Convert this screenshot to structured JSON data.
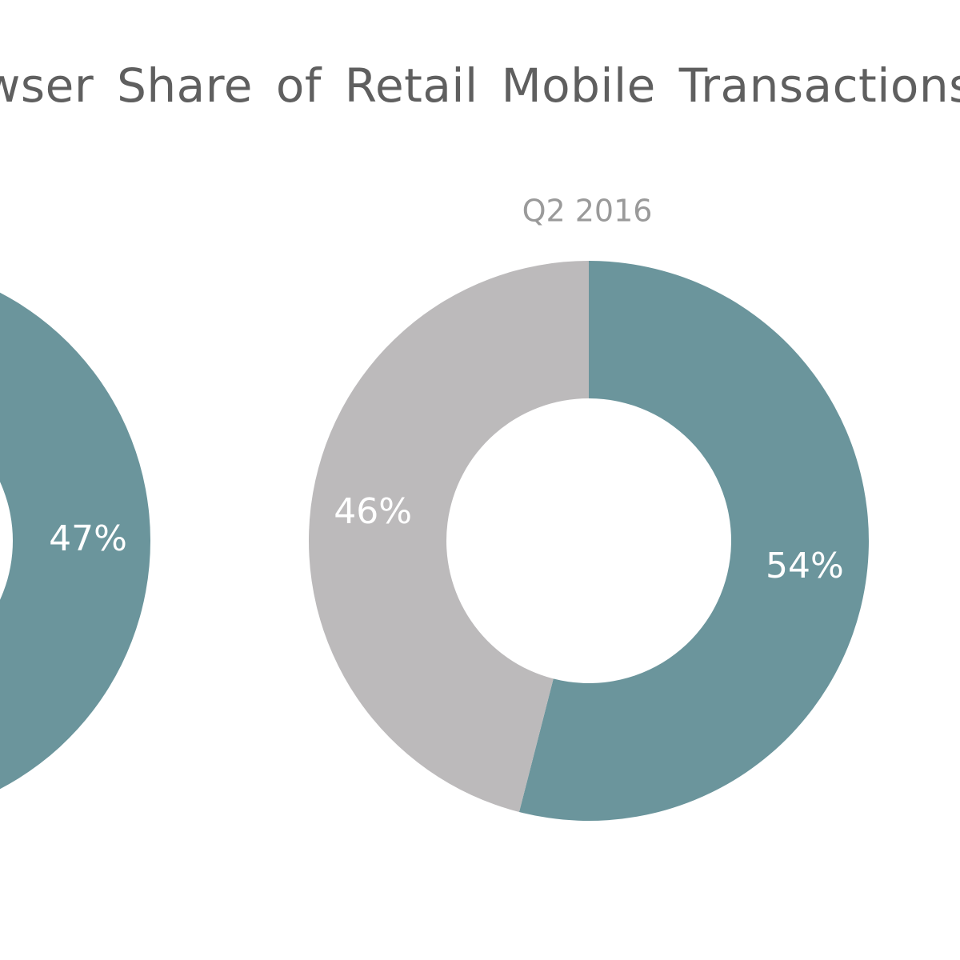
{
  "title": "owser Share of Retail Mobile Transactions",
  "colors": {
    "teal": "#6b959c",
    "grey": "#bcbabb",
    "background": "#ffffff"
  },
  "chart_data": [
    {
      "type": "pie",
      "subtitle": "",
      "slices": [
        {
          "value": 47,
          "label": "47%",
          "color": "#6b959c"
        }
      ]
    },
    {
      "type": "pie",
      "subtitle": "Q2 2016",
      "slices": [
        {
          "value": 54,
          "label": "54%",
          "color": "#6b959c"
        },
        {
          "value": 46,
          "label": "46%",
          "color": "#bcbabb"
        }
      ]
    }
  ]
}
